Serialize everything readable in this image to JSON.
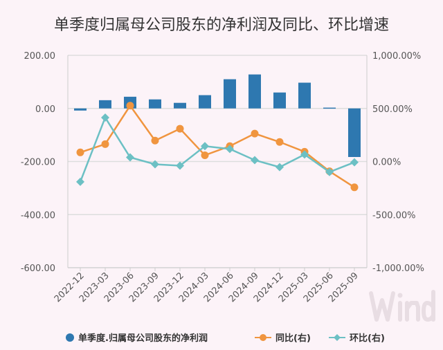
{
  "chart_data": {
    "type": "bar+line",
    "title": "单季度归属母公司股东的净利润及同比、环比增速",
    "categories": [
      "2022-12",
      "2023-03",
      "2023-06",
      "2023-09",
      "2023-12",
      "2024-03",
      "2024-06",
      "2024-09",
      "2024-12",
      "2025-03",
      "2025-06",
      "2025-09"
    ],
    "left_axis": {
      "ylim": [
        -600,
        200
      ],
      "ticks": [
        "200.00",
        "0.00",
        "-200.00",
        "-400.00",
        "-600.00"
      ]
    },
    "right_axis": {
      "ylim": [
        -1000,
        1000
      ],
      "ticks": [
        "1,000.00%",
        "500.00%",
        "0.00%",
        "-500.00%",
        "-1,000.00%"
      ]
    },
    "series": [
      {
        "name": "单季度.归属母公司股东的净利润",
        "type": "bar",
        "axis": "left",
        "color": "#2e78b0",
        "values": [
          -8,
          31,
          44,
          34,
          21,
          50,
          110,
          128,
          60,
          97,
          3,
          -183
        ]
      },
      {
        "name": "同比(右)",
        "type": "line",
        "axis": "right",
        "color": "#f0953f",
        "marker": "circle",
        "values": [
          86,
          164,
          526,
          197,
          309,
          59,
          145,
          263,
          184,
          92,
          -92,
          -243
        ]
      },
      {
        "name": "环比(右)",
        "type": "line",
        "axis": "right",
        "color": "#6cc0c4",
        "marker": "diamond",
        "values": [
          -191,
          414,
          39,
          -26,
          -39,
          145,
          118,
          13,
          -53,
          66,
          -99,
          -7
        ]
      }
    ],
    "grid": "horizontal",
    "legend": "bottom"
  },
  "watermark": "Wind"
}
